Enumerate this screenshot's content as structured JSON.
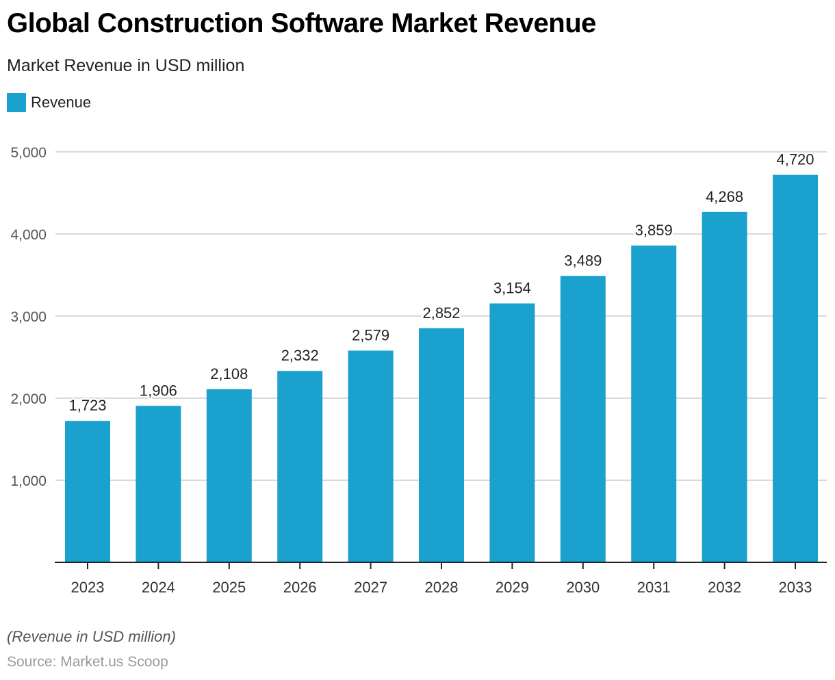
{
  "header": {
    "title": "Global Construction Software Market Revenue",
    "subtitle": "Market Revenue in USD million"
  },
  "legend": {
    "items": [
      {
        "label": "Revenue",
        "color": "#1aa1ce"
      }
    ]
  },
  "footer": {
    "note": "(Revenue in USD million)",
    "source": "Source: Market.us Scoop"
  },
  "chart_data": {
    "type": "bar",
    "title": "Global Construction Software Market Revenue",
    "subtitle": "Market Revenue in USD million",
    "xlabel": "",
    "ylabel": "",
    "categories": [
      "2023",
      "2024",
      "2025",
      "2026",
      "2027",
      "2028",
      "2029",
      "2030",
      "2031",
      "2032",
      "2033"
    ],
    "series": [
      {
        "name": "Revenue",
        "color": "#1aa1ce",
        "values": [
          1723,
          1906,
          2108,
          2332,
          2579,
          2852,
          3154,
          3489,
          3859,
          4268,
          4720
        ],
        "labels": [
          "1,723",
          "1,906",
          "2,108",
          "2,332",
          "2,579",
          "2,852",
          "3,154",
          "3,489",
          "3,859",
          "4,268",
          "4,720"
        ]
      }
    ],
    "ylim": [
      0,
      5000
    ],
    "yticks": [
      1000,
      2000,
      3000,
      4000,
      5000
    ],
    "ytick_labels": [
      "1,000",
      "2,000",
      "3,000",
      "4,000",
      "5,000"
    ],
    "grid": true,
    "legend_position": "top-left",
    "data_labels": true
  }
}
